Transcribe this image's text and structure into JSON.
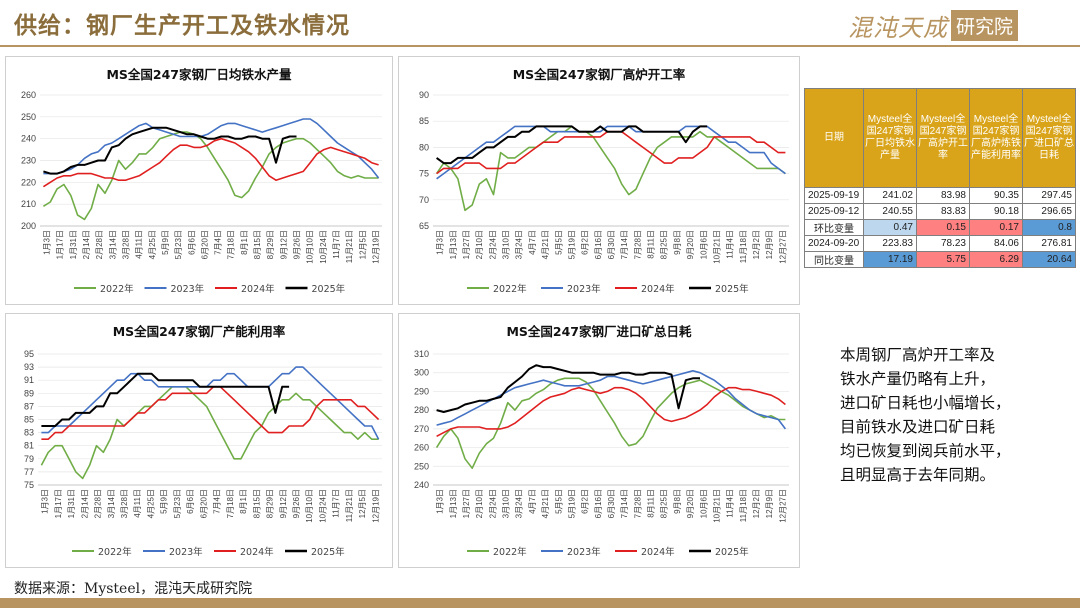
{
  "header": {
    "title": "供给：钢厂生产开工及铁水情况",
    "logo_main": "混沌天成",
    "logo_box": "研究院"
  },
  "colors": {
    "s2022": "#70AD47",
    "s2023": "#4472C4",
    "s2024": "#E02020",
    "s2025": "#000000",
    "gold": "#b89560",
    "header_fill": "#d9a419",
    "blue_cell": "#bdd7ee",
    "red_cell": "#ff8080",
    "blue_strong": "#5b9bd5"
  },
  "table": {
    "headers": [
      "日期",
      "Mysteel全国247家钢厂日均铁水产量",
      "Mysteel全国247家钢厂高炉开工率",
      "Mysteel全国247家钢厂高炉炼铁产能利用率",
      "Mysteel全国247家钢厂进口矿总日耗"
    ],
    "rows": [
      {
        "date": "2025-09-19",
        "values": [
          "241.02",
          "83.98",
          "90.35",
          "297.45"
        ]
      },
      {
        "date": "2025-09-12",
        "values": [
          "240.55",
          "83.83",
          "90.18",
          "296.65"
        ]
      },
      {
        "date": "环比变量",
        "values": [
          "0.47",
          "0.15",
          "0.17",
          "0.8"
        ]
      },
      {
        "date": "2024-09-20",
        "values": [
          "223.83",
          "78.23",
          "84.06",
          "276.81"
        ]
      },
      {
        "date": "同比变量",
        "values": [
          "17.19",
          "5.75",
          "6.29",
          "20.64"
        ]
      }
    ]
  },
  "commentary": [
    "本周钢厂高炉开工率及",
    "铁水产量仍略有上升，",
    "进口矿日耗也小幅增长，",
    "目前铁水及进口矿日耗",
    "均已恢复到阅兵前水平，",
    "且明显高于去年同期。"
  ],
  "source": "数据来源：Mysteel，混沌天成研究院",
  "chart_data": [
    {
      "type": "line",
      "title": "MS全国247家钢厂日均铁水产量",
      "ylim": [
        200,
        260
      ],
      "yticks": [
        200,
        210,
        220,
        230,
        240,
        250,
        260
      ],
      "x_labels": [
        "1月3日",
        "1月17日",
        "1月31日",
        "2月14日",
        "2月28日",
        "3月14日",
        "3月28日",
        "4月11日",
        "4月25日",
        "5月9日",
        "5月23日",
        "6月6日",
        "6月20日",
        "7月4日",
        "7月18日",
        "8月1日",
        "8月15日",
        "8月29日",
        "9月12日",
        "9月26日",
        "10月10日",
        "10月24日",
        "11月7日",
        "11月21日",
        "12月5日",
        "12月19日"
      ],
      "series": [
        {
          "name": "2022年",
          "values": [
            209,
            211,
            217,
            219,
            214,
            205,
            203,
            208,
            219,
            215,
            221,
            230,
            226,
            229,
            233,
            233,
            236,
            240,
            241,
            242,
            243,
            243,
            242,
            240,
            236,
            231,
            226,
            221,
            214,
            213,
            216,
            222,
            227,
            233,
            236,
            238,
            239,
            240,
            240,
            238,
            235,
            232,
            229,
            225,
            223,
            222,
            223,
            222,
            222,
            222
          ]
        },
        {
          "name": "2023年",
          "values": [
            224,
            224,
            224,
            225,
            226,
            228,
            231,
            233,
            234,
            237,
            238,
            240,
            242,
            244,
            246,
            247,
            245,
            244,
            243,
            242,
            241,
            241,
            241,
            241,
            242,
            244,
            246,
            247,
            247,
            246,
            245,
            244,
            243,
            244,
            245,
            246,
            247,
            248,
            249,
            249,
            247,
            244,
            241,
            238,
            236,
            234,
            232,
            229,
            226,
            222
          ]
        },
        {
          "name": "2024年",
          "values": [
            218,
            220,
            222,
            223,
            223,
            224,
            224,
            224,
            223,
            222,
            222,
            221,
            221,
            222,
            223,
            225,
            227,
            229,
            232,
            235,
            237,
            237,
            236,
            236,
            237,
            239,
            240,
            239,
            238,
            236,
            234,
            231,
            227,
            223,
            221,
            222,
            223,
            224,
            225,
            229,
            233,
            235,
            236,
            235,
            234,
            233,
            232,
            231,
            229,
            228
          ]
        },
        {
          "name": "2025年",
          "values": [
            225,
            224,
            224,
            225,
            227,
            228,
            228,
            229,
            230,
            230,
            236,
            237,
            240,
            242,
            243,
            244,
            245,
            245,
            245,
            244,
            243,
            242,
            242,
            241,
            240,
            240,
            241,
            241,
            240,
            240,
            241,
            241,
            240,
            240,
            229,
            240,
            241,
            241,
            null,
            null,
            null,
            null,
            null,
            null,
            null,
            null,
            null,
            null,
            null,
            null
          ]
        }
      ]
    },
    {
      "type": "line",
      "title": "MS全国247家钢厂高炉开工率",
      "ylim": [
        65,
        90
      ],
      "yticks": [
        65,
        70,
        75,
        80,
        85,
        90
      ],
      "x_labels": [
        "1月3日",
        "1月13日",
        "1月27日",
        "2月10日",
        "2月24日",
        "3月10日",
        "3月24日",
        "4月7日",
        "4月21日",
        "5月5日",
        "5月19日",
        "6月2日",
        "6月16日",
        "6月30日",
        "7月14日",
        "7月28日",
        "8月11日",
        "8月25日",
        "9月8日",
        "9月20日",
        "10月6日",
        "10月21日",
        "11月4日",
        "11月18日",
        "12月2日",
        "12月9日",
        "12月27日"
      ],
      "series": [
        {
          "name": "2022年",
          "values": [
            75,
            77,
            76,
            74,
            68,
            69,
            73,
            74,
            71,
            79,
            78,
            78,
            79,
            80,
            80,
            81,
            82,
            83,
            83,
            84,
            83,
            83,
            82,
            80,
            78,
            76,
            73,
            71,
            72,
            75,
            78,
            80,
            81,
            82,
            82,
            82,
            82,
            83,
            82,
            82,
            81,
            80,
            79,
            78,
            77,
            76,
            76,
            76,
            76,
            75
          ]
        },
        {
          "name": "2023年",
          "values": [
            74,
            75,
            76,
            77,
            78,
            79,
            80,
            81,
            81,
            82,
            83,
            84,
            84,
            84,
            84,
            84,
            83,
            83,
            83,
            83,
            83,
            83,
            83,
            83,
            84,
            84,
            84,
            84,
            83,
            83,
            83,
            83,
            83,
            83,
            83,
            84,
            84,
            84,
            84,
            83,
            82,
            81,
            81,
            80,
            79,
            79,
            79,
            77,
            76,
            75
          ]
        },
        {
          "name": "2024年",
          "values": [
            75,
            76,
            76,
            76,
            77,
            77,
            77,
            76,
            76,
            76,
            77,
            77,
            78,
            79,
            80,
            81,
            81,
            81,
            82,
            82,
            82,
            82,
            82,
            82,
            83,
            83,
            83,
            82,
            81,
            80,
            79,
            78,
            77,
            77,
            78,
            78,
            78,
            79,
            80,
            82,
            82,
            82,
            82,
            82,
            82,
            81,
            81,
            80,
            79,
            79
          ]
        },
        {
          "name": "2025年",
          "values": [
            78,
            77,
            77,
            78,
            78,
            78,
            79,
            80,
            80,
            81,
            82,
            82,
            83,
            83,
            84,
            84,
            84,
            84,
            84,
            84,
            83,
            83,
            83,
            84,
            83,
            83,
            83,
            84,
            84,
            83,
            83,
            83,
            83,
            83,
            83,
            81,
            83,
            84,
            84,
            null,
            null,
            null,
            null,
            null,
            null,
            null,
            null,
            null,
            null,
            null
          ]
        }
      ]
    },
    {
      "type": "line",
      "title": "MS全国247家钢厂产能利用率",
      "ylim": [
        75,
        95
      ],
      "yticks": [
        75,
        77,
        79,
        81,
        83,
        85,
        87,
        89,
        91,
        93,
        95
      ],
      "x_labels": [
        "1月3日",
        "1月17日",
        "1月31日",
        "2月14日",
        "2月28日",
        "3月14日",
        "3月28日",
        "4月11日",
        "4月25日",
        "5月9日",
        "5月23日",
        "6月6日",
        "6月20日",
        "7月4日",
        "7月18日",
        "8月1日",
        "8月15日",
        "8月29日",
        "9月12日",
        "9月26日",
        "10月10日",
        "10月24日",
        "11月7日",
        "11月21日",
        "12月5日",
        "12月19日"
      ],
      "series": [
        {
          "name": "2022年",
          "values": [
            78,
            80,
            81,
            81,
            79,
            77,
            76,
            78,
            81,
            80,
            82,
            85,
            84,
            85,
            86,
            87,
            87,
            88,
            89,
            90,
            90,
            90,
            89,
            88,
            87,
            85,
            83,
            81,
            79,
            79,
            81,
            83,
            84,
            86,
            87,
            88,
            88,
            89,
            88,
            88,
            87,
            86,
            85,
            84,
            83,
            83,
            82,
            83,
            82,
            82
          ]
        },
        {
          "name": "2023年",
          "values": [
            83,
            83,
            84,
            84,
            84,
            85,
            86,
            87,
            88,
            89,
            90,
            91,
            91,
            92,
            92,
            91,
            91,
            90,
            90,
            90,
            90,
            90,
            90,
            90,
            90,
            91,
            91,
            92,
            92,
            91,
            90,
            90,
            90,
            90,
            91,
            92,
            92,
            93,
            93,
            92,
            91,
            90,
            89,
            88,
            87,
            86,
            85,
            84,
            84,
            82
          ]
        },
        {
          "name": "2024年",
          "values": [
            82,
            82,
            83,
            83,
            84,
            84,
            84,
            84,
            84,
            84,
            84,
            84,
            84,
            85,
            86,
            86,
            87,
            88,
            88,
            89,
            89,
            89,
            89,
            89,
            89,
            90,
            90,
            89,
            88,
            87,
            86,
            85,
            84,
            83,
            83,
            83,
            84,
            84,
            84,
            85,
            87,
            88,
            88,
            88,
            88,
            88,
            87,
            87,
            86,
            85
          ]
        },
        {
          "name": "2025年",
          "values": [
            84,
            84,
            84,
            85,
            85,
            86,
            86,
            86,
            87,
            87,
            89,
            89,
            90,
            91,
            92,
            92,
            92,
            91,
            91,
            91,
            91,
            91,
            91,
            90,
            90,
            90,
            90,
            90,
            90,
            90,
            90,
            90,
            90,
            90,
            86,
            90,
            90,
            null,
            null,
            null,
            null,
            null,
            null,
            null,
            null,
            null,
            null,
            null,
            null,
            null
          ]
        }
      ]
    },
    {
      "type": "line",
      "title": "MS全国247家钢厂进口矿总日耗",
      "ylim": [
        240,
        310
      ],
      "yticks": [
        240,
        250,
        260,
        270,
        280,
        290,
        300,
        310
      ],
      "x_labels": [
        "1月3日",
        "1月13日",
        "1月27日",
        "2月10日",
        "2月24日",
        "3月10日",
        "3月24日",
        "4月7日",
        "4月21日",
        "5月5日",
        "5月19日",
        "6月2日",
        "6月16日",
        "6月30日",
        "7月14日",
        "7月28日",
        "8月11日",
        "8月25日",
        "9月8日",
        "9月20日",
        "10月6日",
        "10月21日",
        "11月4日",
        "11月18日",
        "12月2日",
        "12月9日",
        "12月27日"
      ],
      "series": [
        {
          "name": "2022年",
          "values": [
            260,
            266,
            270,
            265,
            254,
            249,
            257,
            262,
            265,
            273,
            284,
            280,
            285,
            286,
            289,
            291,
            294,
            296,
            297,
            297,
            297,
            295,
            291,
            285,
            279,
            273,
            266,
            261,
            262,
            266,
            274,
            281,
            285,
            289,
            292,
            294,
            295,
            296,
            294,
            292,
            290,
            288,
            285,
            282,
            280,
            278,
            276,
            277,
            275,
            275
          ]
        },
        {
          "name": "2023年",
          "values": [
            272,
            273,
            274,
            276,
            278,
            280,
            282,
            284,
            286,
            288,
            290,
            292,
            293,
            294,
            295,
            296,
            295,
            294,
            293,
            293,
            293,
            294,
            295,
            296,
            298,
            298,
            297,
            296,
            295,
            294,
            295,
            296,
            297,
            298,
            299,
            300,
            301,
            300,
            298,
            296,
            293,
            290,
            286,
            283,
            280,
            278,
            277,
            276,
            275,
            270
          ]
        },
        {
          "name": "2024年",
          "values": [
            266,
            268,
            270,
            271,
            271,
            271,
            271,
            270,
            270,
            270,
            271,
            273,
            276,
            279,
            282,
            285,
            287,
            288,
            289,
            291,
            292,
            291,
            290,
            289,
            290,
            292,
            292,
            291,
            289,
            286,
            282,
            278,
            275,
            274,
            275,
            276,
            278,
            280,
            283,
            287,
            290,
            292,
            292,
            291,
            291,
            290,
            289,
            288,
            286,
            283
          ]
        },
        {
          "name": "2025年",
          "values": [
            280,
            279,
            280,
            281,
            283,
            284,
            285,
            285,
            286,
            287,
            292,
            295,
            298,
            302,
            304,
            303,
            303,
            302,
            301,
            300,
            300,
            300,
            300,
            299,
            299,
            299,
            300,
            300,
            299,
            299,
            300,
            300,
            300,
            299,
            281,
            296,
            297,
            297,
            null,
            null,
            null,
            null,
            null,
            null,
            null,
            null,
            null,
            null,
            null,
            null
          ]
        }
      ]
    }
  ]
}
